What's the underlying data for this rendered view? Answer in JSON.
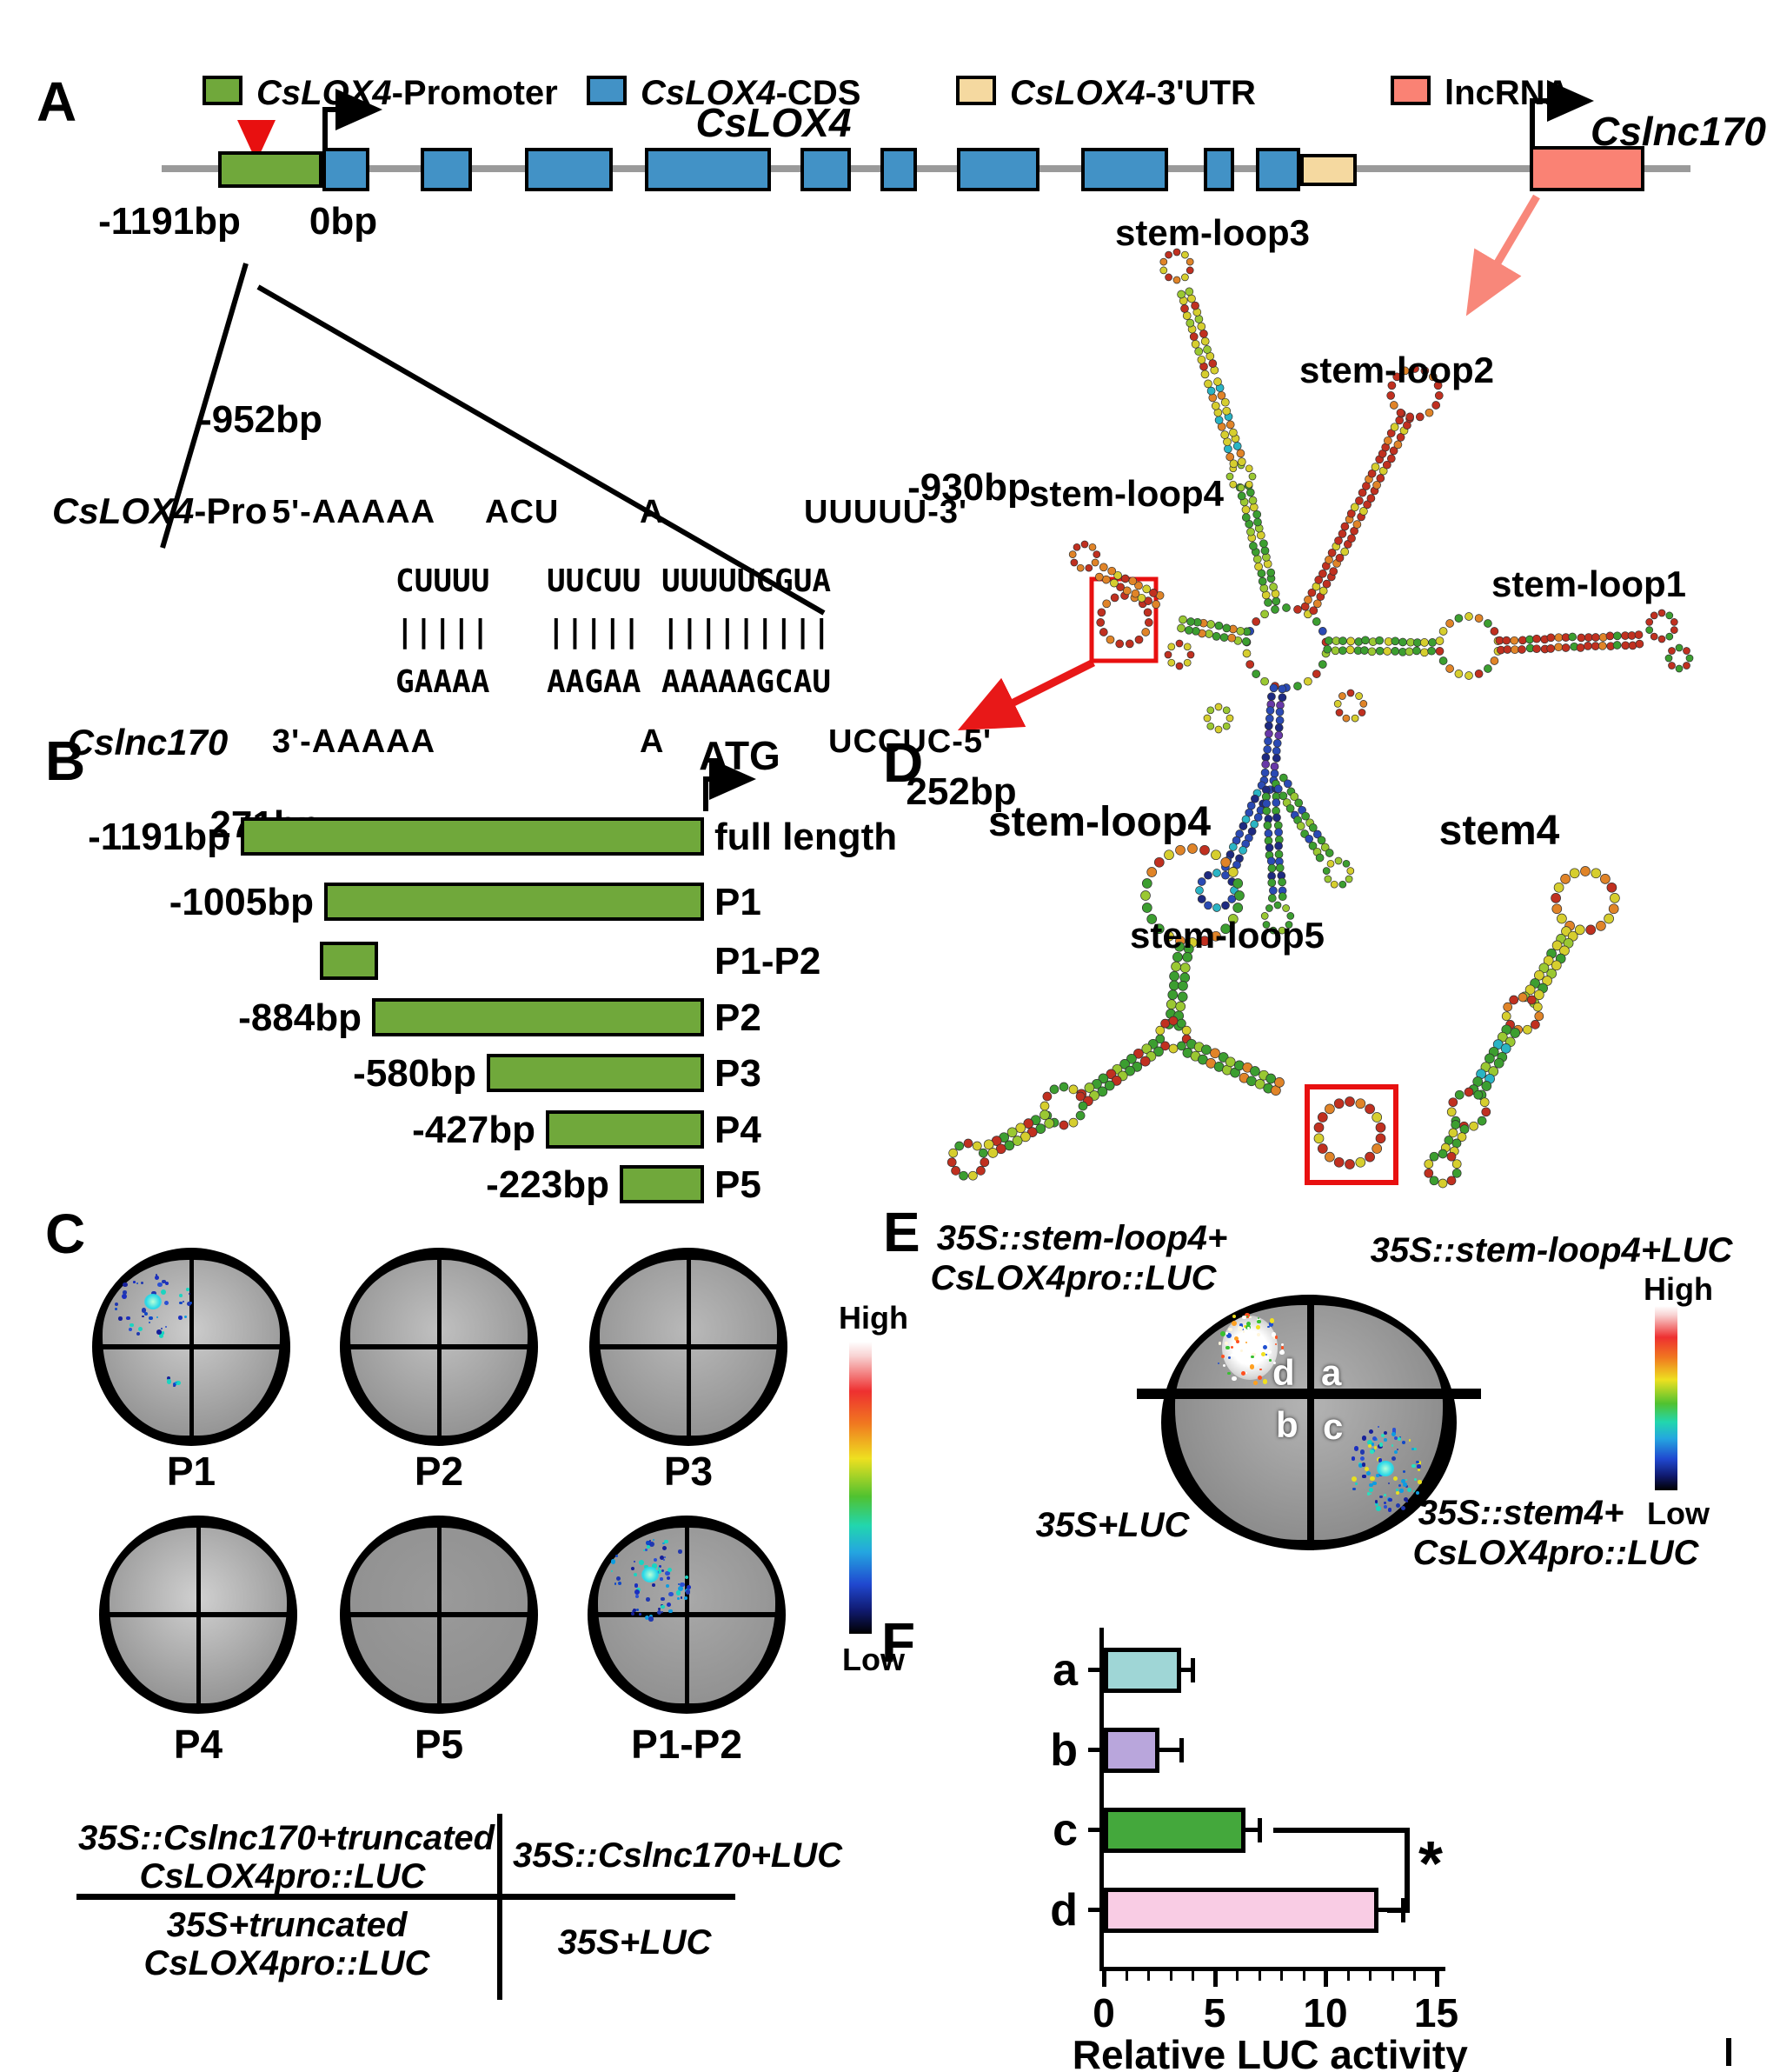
{
  "legend": {
    "items": [
      {
        "gene": "CsLOX4",
        "suffix": "-Promoter",
        "color": "#70a83b"
      },
      {
        "gene": "CsLOX4",
        "suffix": "-CDS",
        "color": "#4292c6"
      },
      {
        "gene": "CsLOX4",
        "suffix": "-3'UTR",
        "color": "#f5d9a0"
      },
      {
        "gene": "",
        "suffix": "lncRNA",
        "color": "#fa8274"
      }
    ]
  },
  "panelA": {
    "label": "A",
    "gene_track": {
      "upstream_label": "-1191bp",
      "tss_label": "0bp",
      "gene_name": "CsLOX4",
      "lncrna_name": "Cslnc170"
    },
    "alignment": {
      "top_pos": "-952bp",
      "top_name_gene": "CsLOX4",
      "top_name_suffix": "-Pro",
      "top_seq_start": "5'-AAAAA",
      "top_seq_mid1": "ACU",
      "top_seq_mid2": "A",
      "top_seq_end": "UUUUU-3'",
      "pair_top": [
        "CUUUU",
        "UUCUU",
        "UUUUUCGUA"
      ],
      "pair_pipes": [
        "|||||",
        "|||||",
        "|||||||||"
      ],
      "pair_bottom": [
        "GAAAA",
        "AAGAA",
        "AAAAAGCAU"
      ],
      "bottom_name": "Cslnc170",
      "bottom_seq_start": "3'-AAAAA",
      "bottom_seq_mid": "A",
      "bottom_seq_end": "UCCUC-5'",
      "bottom_pos": "271bp",
      "right_top_pos": "-930bp",
      "right_bottom_pos": "252bp"
    },
    "stem_loops": [
      "stem-loop1",
      "stem-loop2",
      "stem-loop3",
      "stem-loop4",
      "stem-loop5"
    ]
  },
  "panelB": {
    "label": "B",
    "atg": "ATG",
    "rows": [
      {
        "pos": "-1191bp",
        "name": "full length"
      },
      {
        "pos": "-1005bp",
        "name": "P1"
      },
      {
        "pos": "",
        "name": "P1-P2"
      },
      {
        "pos": "-884bp",
        "name": "P2"
      },
      {
        "pos": "-580bp",
        "name": "P3"
      },
      {
        "pos": "-427bp",
        "name": "P4"
      },
      {
        "pos": "-223bp",
        "name": "P5"
      }
    ]
  },
  "panelC": {
    "label": "C",
    "dish_labels": [
      "P1",
      "P2",
      "P3",
      "P4",
      "P5",
      "P1-P2"
    ],
    "scale": {
      "high": "High",
      "low": "Low"
    },
    "combo_legend": {
      "top_left_line1": "35S::Cslnc170+truncated",
      "top_left_line2": "CsLOX4pro::LUC",
      "top_right": "35S::Cslnc170+LUC",
      "bottom_left_line1": "35S+truncated",
      "bottom_left_line2": "CsLOX4pro::LUC",
      "bottom_right": "35S+LUC"
    }
  },
  "panelD": {
    "label": "D",
    "left_title": "stem-loop4",
    "right_title": "stem4"
  },
  "panelE": {
    "label": "E",
    "corner_labels": {
      "top_left_line1": "35S::stem-loop4+",
      "top_left_line2": "CsLOX4pro::LUC",
      "top_right": "35S::stem-loop4+LUC",
      "bottom_left": "35S+LUC",
      "bottom_right_line1": "35S::stem4+",
      "bottom_right_line2": "CsLOX4pro::LUC"
    },
    "quadrants": {
      "top_left": "d",
      "top_right": "a",
      "bottom_left": "b",
      "bottom_right": "c"
    },
    "scale": {
      "high": "High",
      "low": "Low"
    }
  },
  "panelF": {
    "label": "F"
  },
  "chart_data": {
    "type": "bar",
    "orientation": "horizontal",
    "title": "",
    "categories": [
      "a",
      "b",
      "c",
      "d"
    ],
    "values": [
      3.5,
      2.5,
      6.4,
      12.4
    ],
    "errors": [
      0.5,
      1.0,
      0.6,
      1.1
    ],
    "colors": [
      "#9fd6d6",
      "#b9a6dc",
      "#44a83c",
      "#f9cce4"
    ],
    "xlabel": "Relative LUC activity",
    "xlim": [
      0,
      15
    ],
    "xticks": [
      0,
      5,
      10,
      15
    ],
    "minor_tick_step": 1,
    "significance": {
      "between": [
        "c",
        "d"
      ],
      "label": "*"
    }
  }
}
